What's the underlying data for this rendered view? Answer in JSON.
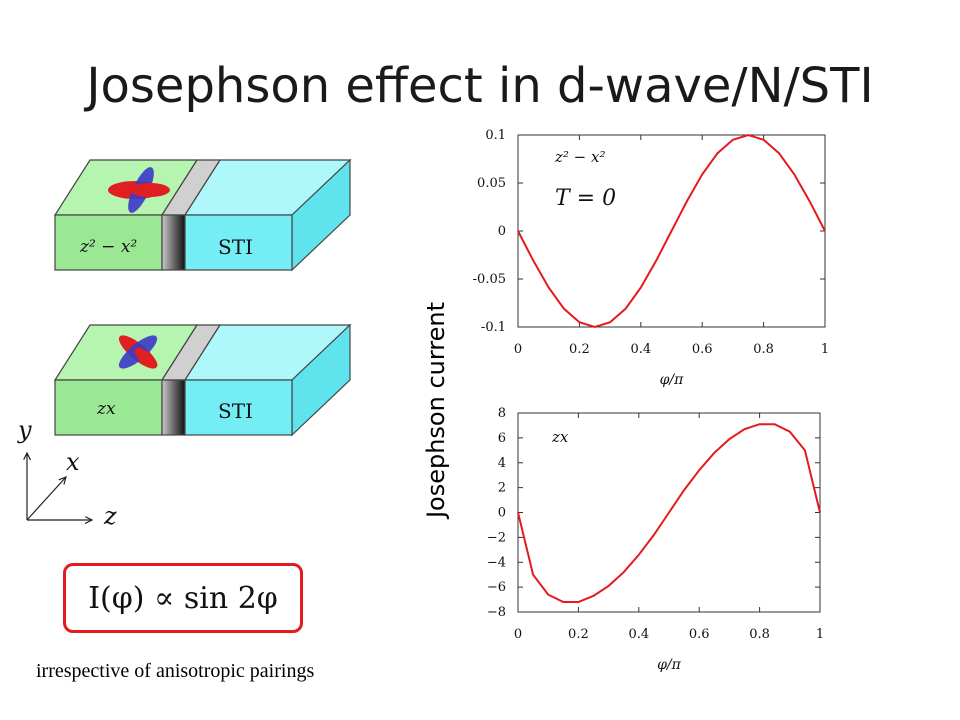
{
  "slide": {
    "title": "Josephson effect in d-wave/N/STI",
    "y_axis_label": "Josephson current",
    "caption": "irrespective of anisotropic pairings",
    "formula": "I(φ) ∝ sin 2φ"
  },
  "diagram": {
    "blocks": [
      {
        "pairing_label": "z² − x²",
        "sti_label": "STI"
      },
      {
        "pairing_label": "zx",
        "sti_label": "STI"
      }
    ],
    "axes": {
      "y": "y",
      "x": "x",
      "z": "z"
    },
    "colors": {
      "dwave": "#aef5a6",
      "sti": "#74eef4",
      "normal": "#7f7f7f",
      "lobe_red": "#e02020",
      "lobe_blue": "#3a3ac8"
    }
  },
  "chart_data": [
    {
      "type": "line",
      "x": [
        0,
        0.05,
        0.1,
        0.15,
        0.2,
        0.25,
        0.3,
        0.35,
        0.4,
        0.45,
        0.5,
        0.55,
        0.6,
        0.65,
        0.7,
        0.75,
        0.8,
        0.85,
        0.9,
        0.95,
        1.0
      ],
      "y": [
        0,
        -0.031,
        -0.059,
        -0.081,
        -0.095,
        -0.1,
        -0.095,
        -0.081,
        -0.059,
        -0.031,
        0,
        0.031,
        0.059,
        0.081,
        0.095,
        0.1,
        0.095,
        0.081,
        0.059,
        0.031,
        0
      ],
      "xlabel": "φ/π",
      "ylabel": "",
      "xlim": [
        0,
        1
      ],
      "ylim": [
        -0.1,
        0.1
      ],
      "xticks": [
        "0",
        "0.2",
        "0.4",
        "0.6",
        "0.8",
        "1"
      ],
      "yticks": [
        "-0.1",
        "-0.05",
        "0",
        "0.05",
        "0.1"
      ],
      "annotations": [
        "z² − x²",
        "T = 0"
      ],
      "color": "#e41a1c",
      "grid": false
    },
    {
      "type": "line",
      "x": [
        0,
        0.05,
        0.1,
        0.15,
        0.2,
        0.25,
        0.3,
        0.35,
        0.4,
        0.45,
        0.5,
        0.55,
        0.6,
        0.65,
        0.7,
        0.75,
        0.8,
        0.85,
        0.9,
        0.95,
        1.0
      ],
      "y": [
        0,
        -5.0,
        -6.6,
        -7.2,
        -7.2,
        -6.7,
        -5.9,
        -4.8,
        -3.4,
        -1.8,
        0,
        1.8,
        3.4,
        4.8,
        5.9,
        6.7,
        7.1,
        7.1,
        6.5,
        5.0,
        0
      ],
      "xlabel": "φ/π",
      "ylabel": "",
      "xlim": [
        0,
        1
      ],
      "ylim": [
        -8,
        8
      ],
      "xticks": [
        "0",
        "0.2",
        "0.4",
        "0.6",
        "0.8",
        "1"
      ],
      "yticks": [
        "−8",
        "−6",
        "−4",
        "−2",
        "0",
        "2",
        "4",
        "6",
        "8"
      ],
      "annotations": [
        "zx"
      ],
      "color": "#e41a1c",
      "grid": false
    }
  ]
}
